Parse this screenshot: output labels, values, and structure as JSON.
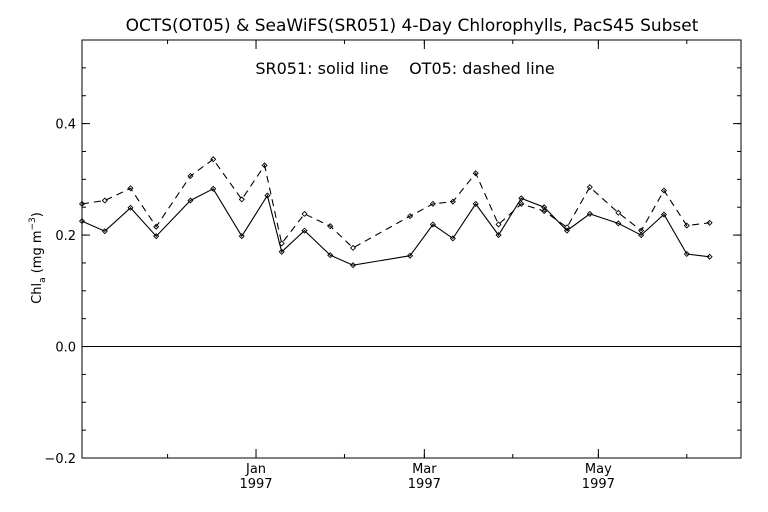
{
  "chart_data": {
    "type": "line",
    "title": "OCTS(OT05) & SeaWiFS(SR051) 4-Day Chlorophylls, PacS45 Subset",
    "annotation": "SR051: solid line    OT05: dashed line",
    "ylabel": {
      "main": "Chl",
      "sub": "a",
      "unit_open": " (mg m",
      "unit_exp": "−3",
      "unit_close": ")"
    },
    "xlabel": "",
    "ylim": [
      -0.2,
      0.55
    ],
    "xlim": [
      "1996-11-01",
      "1997-06-20"
    ],
    "yticks": [
      {
        "value": -0.2,
        "label": "−0.2"
      },
      {
        "value": 0.0,
        "label": "0.0"
      },
      {
        "value": 0.2,
        "label": "0.2"
      },
      {
        "value": 0.4,
        "label": "0.4"
      }
    ],
    "xticks": [
      {
        "date": "1997-01-01",
        "label": "Jan",
        "year": "1997"
      },
      {
        "date": "1997-03-01",
        "label": "Mar",
        "year": "1997"
      },
      {
        "date": "1997-05-01",
        "label": "May",
        "year": "1997"
      }
    ],
    "zero_line": true,
    "grid": false,
    "series": [
      {
        "name": "SR051",
        "style": "solid",
        "color": "#000000",
        "points": [
          {
            "x": "1996-11-01",
            "y": 0.225
          },
          {
            "x": "1996-11-09",
            "y": 0.207
          },
          {
            "x": "1996-11-18",
            "y": 0.249
          },
          {
            "x": "1996-11-27",
            "y": 0.198
          },
          {
            "x": "1996-12-09",
            "y": 0.262
          },
          {
            "x": "1996-12-17",
            "y": 0.283
          },
          {
            "x": "1996-12-27",
            "y": 0.198
          },
          {
            "x": "1997-01-05",
            "y": 0.271
          },
          {
            "x": "1997-01-10",
            "y": 0.17
          },
          {
            "x": "1997-01-18",
            "y": 0.208
          },
          {
            "x": "1997-01-27",
            "y": 0.164
          },
          {
            "x": "1997-02-04",
            "y": 0.146
          },
          {
            "x": "1997-02-24",
            "y": 0.163
          },
          {
            "x": "1997-03-04",
            "y": 0.219
          },
          {
            "x": "1997-03-11",
            "y": 0.194
          },
          {
            "x": "1997-03-19",
            "y": 0.256
          },
          {
            "x": "1997-03-27",
            "y": 0.2
          },
          {
            "x": "1997-04-04",
            "y": 0.266
          },
          {
            "x": "1997-04-12",
            "y": 0.25
          },
          {
            "x": "1997-04-20",
            "y": 0.208
          },
          {
            "x": "1997-04-28",
            "y": 0.238
          },
          {
            "x": "1997-05-08",
            "y": 0.221
          },
          {
            "x": "1997-05-16",
            "y": 0.2
          },
          {
            "x": "1997-05-24",
            "y": 0.237
          },
          {
            "x": "1997-06-01",
            "y": 0.166
          },
          {
            "x": "1997-06-09",
            "y": 0.161
          }
        ]
      },
      {
        "name": "OT05",
        "style": "dashed",
        "color": "#000000",
        "points": [
          {
            "x": "1996-11-01",
            "y": 0.256
          },
          {
            "x": "1996-11-09",
            "y": 0.262
          },
          {
            "x": "1996-11-18",
            "y": 0.284
          },
          {
            "x": "1996-11-27",
            "y": 0.215
          },
          {
            "x": "1996-12-09",
            "y": 0.306
          },
          {
            "x": "1996-12-17",
            "y": 0.336
          },
          {
            "x": "1996-12-27",
            "y": 0.264
          },
          {
            "x": "1997-01-04",
            "y": 0.325
          },
          {
            "x": "1997-01-10",
            "y": 0.185
          },
          {
            "x": "1997-01-18",
            "y": 0.238
          },
          {
            "x": "1997-01-27",
            "y": 0.216
          },
          {
            "x": "1997-02-04",
            "y": 0.177
          },
          {
            "x": "1997-02-24",
            "y": 0.234
          },
          {
            "x": "1997-03-04",
            "y": 0.256
          },
          {
            "x": "1997-03-11",
            "y": 0.26
          },
          {
            "x": "1997-03-19",
            "y": 0.311
          },
          {
            "x": "1997-03-27",
            "y": 0.219
          },
          {
            "x": "1997-04-04",
            "y": 0.256
          },
          {
            "x": "1997-04-12",
            "y": 0.243
          },
          {
            "x": "1997-04-20",
            "y": 0.214
          },
          {
            "x": "1997-04-28",
            "y": 0.286
          },
          {
            "x": "1997-05-08",
            "y": 0.24
          },
          {
            "x": "1997-05-16",
            "y": 0.208
          },
          {
            "x": "1997-05-24",
            "y": 0.28
          },
          {
            "x": "1997-06-01",
            "y": 0.217
          },
          {
            "x": "1997-06-09",
            "y": 0.222
          }
        ]
      }
    ]
  }
}
